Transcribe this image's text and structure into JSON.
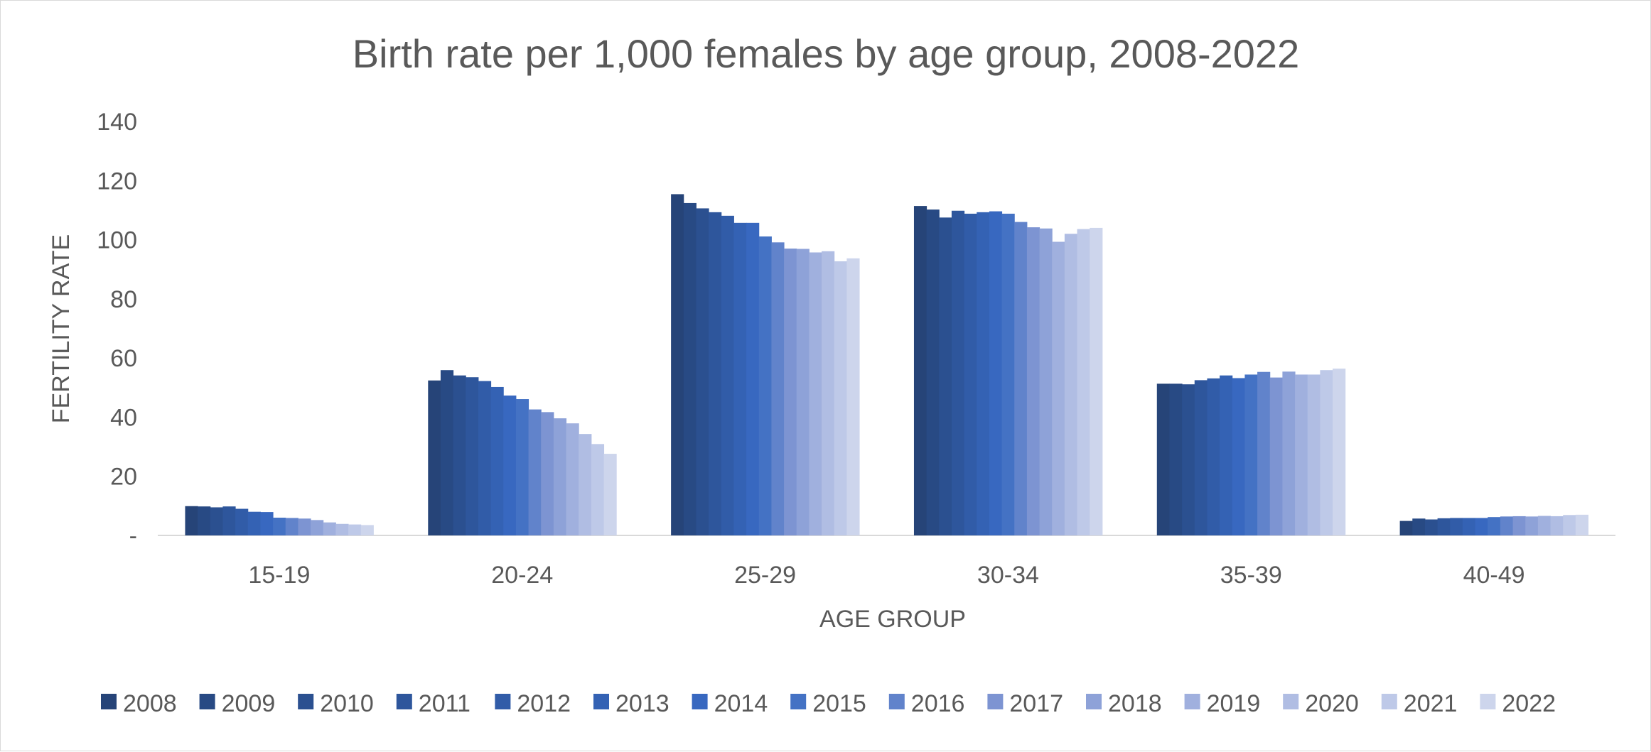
{
  "chart_data": {
    "type": "bar",
    "title": "Birth rate per 1,000 females by age group, 2008-2022",
    "xlabel": "AGE GROUP",
    "ylabel": "FERTILITY RATE",
    "ylim": [
      0,
      140
    ],
    "yticks": [
      0,
      20,
      40,
      60,
      80,
      100,
      120,
      140
    ],
    "ytick_labels": [
      "-",
      "20",
      "40",
      "60",
      "80",
      "100",
      "120",
      "140"
    ],
    "grid": false,
    "legend_position": "bottom",
    "categories": [
      "15-19",
      "20-24",
      "25-29",
      "30-34",
      "35-39",
      "40-49"
    ],
    "series": [
      {
        "name": "2008",
        "color": "#264478",
        "values": [
          9.9,
          52.4,
          115.4,
          111.4,
          51.3,
          4.9
        ]
      },
      {
        "name": "2009",
        "color": "#284A84",
        "values": [
          9.8,
          55.9,
          112.4,
          110.2,
          51.3,
          5.7
        ]
      },
      {
        "name": "2010",
        "color": "#2B5090",
        "values": [
          9.5,
          54.1,
          110.6,
          107.5,
          51.1,
          5.4
        ]
      },
      {
        "name": "2011",
        "color": "#2E569C",
        "values": [
          9.8,
          53.5,
          109.3,
          109.8,
          52.5,
          5.8
        ]
      },
      {
        "name": "2012",
        "color": "#315CA8",
        "values": [
          9.0,
          52.2,
          108.1,
          108.8,
          53.1,
          5.9
        ]
      },
      {
        "name": "2013",
        "color": "#3462B4",
        "values": [
          8.0,
          50.2,
          105.7,
          109.3,
          54.1,
          5.9
        ]
      },
      {
        "name": "2014",
        "color": "#3868C0",
        "values": [
          7.9,
          47.3,
          105.7,
          109.6,
          53.2,
          5.9
        ]
      },
      {
        "name": "2015",
        "color": "#4472C4",
        "values": [
          6.0,
          46.1,
          101.1,
          108.8,
          54.4,
          6.2
        ]
      },
      {
        "name": "2016",
        "color": "#6183CB",
        "values": [
          5.9,
          42.6,
          99.1,
          106.0,
          55.3,
          6.4
        ]
      },
      {
        "name": "2017",
        "color": "#7D94D2",
        "values": [
          5.7,
          41.7,
          97.0,
          104.2,
          53.4,
          6.5
        ]
      },
      {
        "name": "2018",
        "color": "#8EA2D8",
        "values": [
          5.2,
          39.6,
          96.9,
          103.8,
          55.4,
          6.4
        ]
      },
      {
        "name": "2019",
        "color": "#A0B0DE",
        "values": [
          4.4,
          37.9,
          95.7,
          99.3,
          54.4,
          6.6
        ]
      },
      {
        "name": "2020",
        "color": "#B0BDE3",
        "values": [
          3.9,
          34.3,
          96.1,
          102.0,
          54.4,
          6.5
        ]
      },
      {
        "name": "2021",
        "color": "#BEC9E8",
        "values": [
          3.7,
          30.9,
          92.7,
          103.6,
          55.9,
          6.9
        ]
      },
      {
        "name": "2022",
        "color": "#CDD5EC",
        "values": [
          3.5,
          27.6,
          93.7,
          104.0,
          56.4,
          7.0
        ]
      }
    ]
  }
}
